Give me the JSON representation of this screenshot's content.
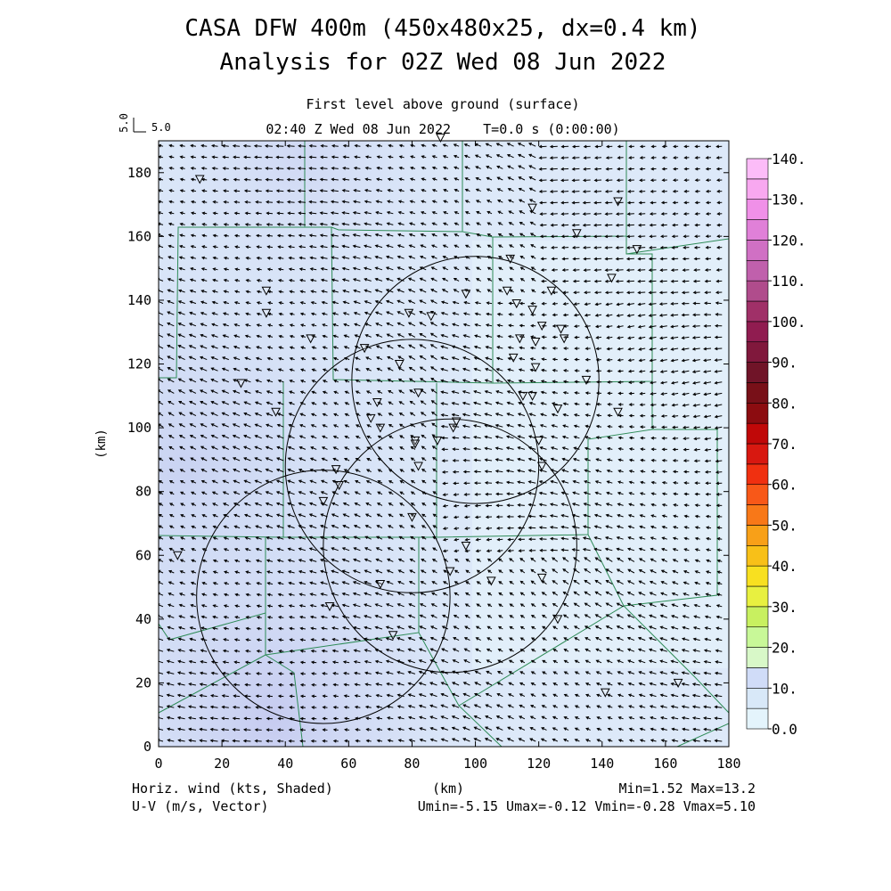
{
  "title": {
    "line1": "CASA DFW 400m (450x480x25, dx=0.4 km)",
    "line2": "Analysis for 02Z Wed 08 Jun 2022"
  },
  "subtitle": {
    "level": "First level above ground (surface)",
    "time": "02:40 Z Wed 08 Jun 2022    T=0.0 s (0:00:00)"
  },
  "reference_vector": {
    "vertical_label": "5.0",
    "horizontal_label": "5.0"
  },
  "footer": {
    "left_line1": "Horiz. wind (kts, Shaded)",
    "left_line2": "U-V (m/s, Vector)",
    "center": "(km)",
    "right_line1": "Min=1.52 Max=13.2",
    "right_line2": "Umin=-5.15 Umax=-0.12 Vmin=-0.28 Vmax=5.10"
  },
  "chart_data": {
    "type": "heatmap",
    "xlabel": "",
    "ylabel": "(km)",
    "xlim": [
      0,
      180
    ],
    "ylim": [
      0,
      190
    ],
    "x_ticks": [
      0,
      20,
      40,
      60,
      80,
      100,
      120,
      140,
      160,
      180
    ],
    "y_ticks": [
      0,
      20,
      40,
      60,
      80,
      100,
      120,
      140,
      160,
      180
    ],
    "shading_range": [
      1.52,
      13.2
    ],
    "wind_u_range": [
      -5.15,
      -0.12
    ],
    "wind_v_range": [
      -0.28,
      5.1
    ],
    "colorbar": {
      "labels": [
        "0.0",
        "10.",
        "20.",
        "30.",
        "40.",
        "50.",
        "60.",
        "70.",
        "80.",
        "90.",
        "100.",
        "110.",
        "120.",
        "130.",
        "140."
      ],
      "colors": [
        "#e4f4fc",
        "#d8e8f8",
        "#d0dcf8",
        "#d8f8c8",
        "#c8f898",
        "#c8f060",
        "#e8f040",
        "#f8e020",
        "#f8c018",
        "#f8a018",
        "#f87818",
        "#f85818",
        "#f03010",
        "#d81810",
        "#c00808",
        "#8c0c10",
        "#781018",
        "#701428",
        "#80183c",
        "#901c50",
        "#a03068",
        "#b04c8c",
        "#c060ac",
        "#d070c4",
        "#e080d8",
        "#f090e8",
        "#f8a8f0",
        "#fcbcf8"
      ]
    },
    "radar_circles_km": [
      {
        "cx": 100,
        "cy": 115,
        "r": 39
      },
      {
        "cx": 80,
        "cy": 88,
        "r": 40
      },
      {
        "cx": 92,
        "cy": 63,
        "r": 40
      },
      {
        "cx": 52,
        "cy": 47,
        "r": 40
      }
    ],
    "stations_km": [
      [
        89,
        191
      ],
      [
        13,
        178
      ],
      [
        118,
        169
      ],
      [
        145,
        171
      ],
      [
        132,
        161
      ],
      [
        151,
        156
      ],
      [
        111,
        153
      ],
      [
        143,
        147
      ],
      [
        34,
        143
      ],
      [
        97,
        142
      ],
      [
        110,
        143
      ],
      [
        124,
        143
      ],
      [
        79,
        136
      ],
      [
        86,
        135
      ],
      [
        113,
        139
      ],
      [
        118,
        137
      ],
      [
        34,
        136
      ],
      [
        121,
        132
      ],
      [
        127,
        131
      ],
      [
        48,
        128
      ],
      [
        114,
        128
      ],
      [
        119,
        127
      ],
      [
        128,
        128
      ],
      [
        65,
        125
      ],
      [
        76,
        120
      ],
      [
        112,
        122
      ],
      [
        119,
        119
      ],
      [
        26,
        114
      ],
      [
        135,
        115
      ],
      [
        82,
        111
      ],
      [
        69,
        108
      ],
      [
        115,
        110
      ],
      [
        118,
        110
      ],
      [
        126,
        106
      ],
      [
        37,
        105
      ],
      [
        145,
        105
      ],
      [
        67,
        103
      ],
      [
        94,
        102
      ],
      [
        70,
        100
      ],
      [
        93,
        100
      ],
      [
        81,
        96
      ],
      [
        81,
        95
      ],
      [
        88,
        96
      ],
      [
        120,
        96
      ],
      [
        82,
        88
      ],
      [
        121,
        88
      ],
      [
        56,
        87
      ],
      [
        57,
        82
      ],
      [
        52,
        77
      ],
      [
        80,
        72
      ],
      [
        6,
        60
      ],
      [
        97,
        63
      ],
      [
        92,
        55
      ],
      [
        70,
        51
      ],
      [
        105,
        52
      ],
      [
        121,
        53
      ],
      [
        54,
        44
      ],
      [
        126,
        40
      ],
      [
        74,
        35
      ],
      [
        164,
        20
      ],
      [
        141,
        17
      ]
    ],
    "wind_field_summary": "light NW-to-NE flow; vectors point mostly northwest in the west, west/southwest in the center and east"
  }
}
